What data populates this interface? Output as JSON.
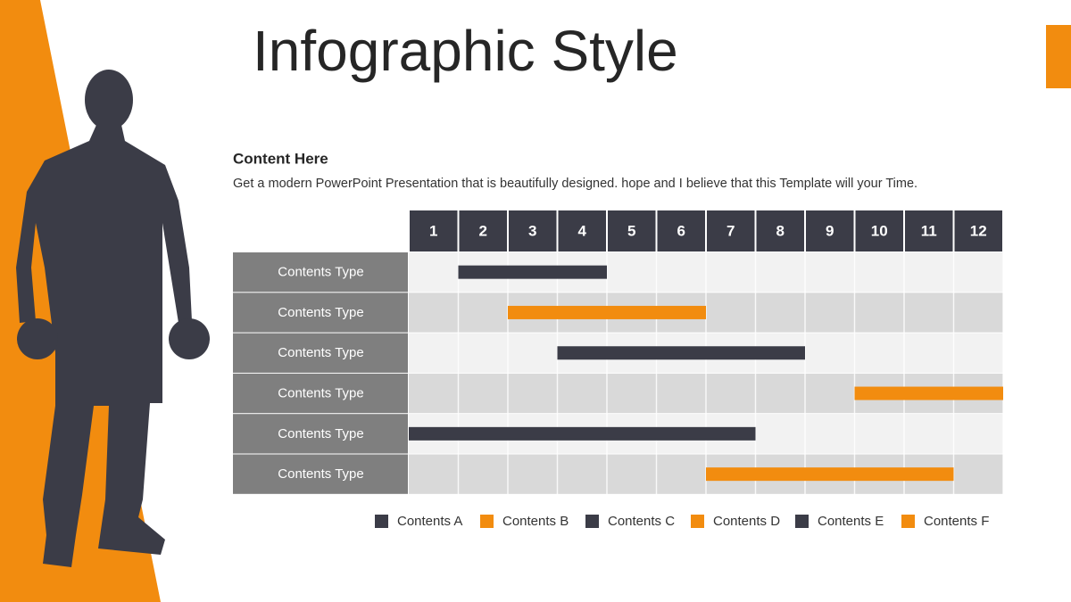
{
  "title": "Infographic Style",
  "content": {
    "heading": "Content  Here",
    "text": "Get a modern PowerPoint  Presentation that is beautifully designed. hope and I believe that this Template will your Time."
  },
  "chart_data": {
    "type": "gantt",
    "categories": [
      "Contents Type",
      "Contents Type",
      "Contents Type",
      "Contents Type",
      "Contents Type",
      "Contents Type"
    ],
    "xlim": [
      0.5,
      12.5
    ],
    "xticks": [
      1,
      2,
      3,
      4,
      5,
      6,
      7,
      8,
      9,
      10,
      11,
      12
    ],
    "series": [
      {
        "name": "Contents A",
        "color": "#3b3c47",
        "start": 1.5,
        "end": 4.5
      },
      {
        "name": "Contents B",
        "color": "#f28c0f",
        "start": 2.5,
        "end": 6.5
      },
      {
        "name": "Contents C",
        "color": "#3b3c47",
        "start": 3.5,
        "end": 8.5
      },
      {
        "name": "Contents D",
        "color": "#f28c0f",
        "start": 9.5,
        "end": 12.5
      },
      {
        "name": "Contents E",
        "color": "#3b3c47",
        "start": 0.5,
        "end": 7.5
      },
      {
        "name": "Contents F",
        "color": "#f28c0f",
        "start": 6.5,
        "end": 11.5
      }
    ]
  }
}
